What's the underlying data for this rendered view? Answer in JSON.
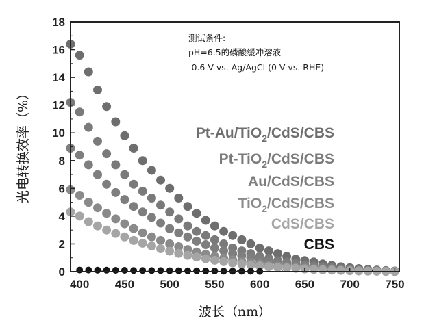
{
  "chart_data": {
    "type": "scatter",
    "xlabel": "波长（nm）",
    "ylabel": "光电转换效率（%）",
    "xlim": [
      390,
      755
    ],
    "ylim": [
      0,
      18
    ],
    "xticks": [
      400,
      450,
      500,
      550,
      600,
      650,
      700,
      750
    ],
    "yticks": [
      0,
      2,
      4,
      6,
      8,
      10,
      12,
      14,
      16,
      18
    ],
    "annotation": [
      "测试条件:",
      "pH=6.5的磷酸缓冲溶液",
      "-0.6 V vs. Ag/AgCl (0 V vs. RHE)"
    ],
    "legend_position": "right",
    "series": [
      {
        "name": "Pt-Au/TiO2/CdS/CBS",
        "label_main": "Pt-Au/TiO",
        "label_sub": "2",
        "label_rest": "/CdS/CBS",
        "color": "#6e6e6e",
        "x": [
          390,
          400,
          410,
          420,
          430,
          440,
          450,
          460,
          470,
          480,
          490,
          500,
          510,
          520,
          530,
          540,
          550,
          560,
          570,
          580,
          590,
          600,
          610,
          620,
          630,
          640,
          650,
          660,
          670,
          680,
          690,
          700,
          710,
          720,
          730,
          740,
          750
        ],
        "y": [
          16.4,
          15.6,
          14.4,
          13.1,
          11.9,
          10.8,
          9.8,
          8.9,
          8.0,
          7.3,
          6.6,
          6.0,
          5.3,
          4.7,
          4.2,
          3.7,
          3.3,
          2.9,
          2.6,
          2.3,
          2.0,
          1.7,
          1.5,
          1.3,
          1.1,
          0.9,
          0.8,
          0.7,
          0.55,
          0.45,
          0.35,
          0.28,
          0.22,
          0.16,
          0.12,
          0.08,
          0.05
        ]
      },
      {
        "name": "Pt-TiO2/CdS/CBS",
        "label_main": "Pt-TiO",
        "label_sub": "2",
        "label_rest": "/CdS/CBS",
        "color": "#7a7a7a",
        "x": [
          390,
          400,
          410,
          420,
          430,
          440,
          450,
          460,
          470,
          480,
          490,
          500,
          510,
          520,
          530,
          540,
          550,
          560,
          570,
          580,
          590,
          600,
          610,
          620,
          630,
          640,
          650,
          660,
          670,
          680,
          690,
          700,
          710,
          720,
          730,
          740,
          750
        ],
        "y": [
          12.2,
          11.5,
          10.4,
          9.4,
          8.5,
          7.7,
          7.0,
          6.3,
          5.8,
          5.3,
          4.8,
          4.3,
          3.8,
          3.3,
          2.9,
          2.6,
          2.3,
          2.0,
          1.7,
          1.5,
          1.3,
          1.1,
          0.95,
          0.8,
          0.7,
          0.6,
          0.5,
          0.42,
          0.35,
          0.28,
          0.22,
          0.17,
          0.13,
          0.1,
          0.07,
          0.05,
          0.03
        ]
      },
      {
        "name": "Au/CdS/CBS",
        "label_main": "Au/CdS/CBS",
        "label_sub": "",
        "label_rest": "",
        "color": "#7e7e7e",
        "x": [
          390,
          400,
          410,
          420,
          430,
          440,
          450,
          460,
          470,
          480,
          490,
          500,
          510,
          520,
          530,
          540,
          550,
          560,
          570,
          580,
          590,
          600,
          610,
          620,
          630,
          640,
          650,
          660,
          670,
          680,
          690,
          700,
          710,
          720,
          730,
          740,
          750
        ],
        "y": [
          8.9,
          8.4,
          7.7,
          7.0,
          6.3,
          5.7,
          5.2,
          4.7,
          4.3,
          3.9,
          3.5,
          3.1,
          2.8,
          2.5,
          2.2,
          1.95,
          1.7,
          1.5,
          1.3,
          1.15,
          1.0,
          0.87,
          0.75,
          0.65,
          0.55,
          0.47,
          0.4,
          0.33,
          0.27,
          0.22,
          0.18,
          0.14,
          0.11,
          0.08,
          0.06,
          0.04,
          0.03
        ]
      },
      {
        "name": "TiO2/CdS/CBS",
        "label_main": "TiO",
        "label_sub": "2",
        "label_rest": "/CdS/CBS",
        "color": "#8a8a8a",
        "x": [
          390,
          400,
          410,
          420,
          430,
          440,
          450,
          460,
          470,
          480,
          490,
          500,
          510,
          520,
          530,
          540,
          550,
          560,
          570,
          580,
          590,
          600,
          610,
          620,
          630,
          640,
          650,
          660,
          670,
          680,
          690,
          700,
          710,
          720,
          730,
          740,
          750
        ],
        "y": [
          5.9,
          5.5,
          5.0,
          4.6,
          4.2,
          3.8,
          3.45,
          3.1,
          2.8,
          2.5,
          2.25,
          2.0,
          1.8,
          1.6,
          1.42,
          1.26,
          1.1,
          0.97,
          0.85,
          0.75,
          0.65,
          0.56,
          0.48,
          0.41,
          0.35,
          0.3,
          0.25,
          0.21,
          0.17,
          0.14,
          0.11,
          0.09,
          0.07,
          0.05,
          0.04,
          0.03,
          0.02
        ]
      },
      {
        "name": "CdS/CBS",
        "label_main": "CdS/CBS",
        "label_sub": "",
        "label_rest": "",
        "color": "#a5a5a5",
        "x": [
          390,
          400,
          410,
          420,
          430,
          440,
          450,
          460,
          470,
          480,
          490,
          500,
          510,
          520,
          530,
          540,
          550,
          560,
          570,
          580,
          590,
          600,
          610,
          620,
          630,
          640,
          650,
          660,
          670,
          680,
          690,
          700,
          710,
          720,
          730,
          740,
          750
        ],
        "y": [
          4.3,
          4.0,
          3.6,
          3.3,
          3.0,
          2.75,
          2.5,
          2.25,
          2.05,
          1.85,
          1.65,
          1.48,
          1.32,
          1.18,
          1.05,
          0.93,
          0.82,
          0.72,
          0.63,
          0.55,
          0.48,
          0.42,
          0.36,
          0.31,
          0.27,
          0.23,
          0.19,
          0.16,
          0.13,
          0.11,
          0.09,
          0.07,
          0.05,
          0.04,
          0.03,
          0.02,
          0.01
        ]
      },
      {
        "name": "CBS",
        "label_main": "CBS",
        "label_sub": "",
        "label_rest": "",
        "color": "#141414",
        "x": [
          400,
          410,
          420,
          430,
          440,
          450,
          460,
          470,
          480,
          490,
          500,
          510,
          520,
          530,
          540,
          550,
          560,
          570,
          580,
          590,
          600
        ],
        "y": [
          0.12,
          0.12,
          0.11,
          0.11,
          0.1,
          0.1,
          0.09,
          0.09,
          0.08,
          0.08,
          0.07,
          0.07,
          0.06,
          0.06,
          0.05,
          0.05,
          0.04,
          0.04,
          0.03,
          0.03,
          0.02
        ]
      }
    ]
  }
}
